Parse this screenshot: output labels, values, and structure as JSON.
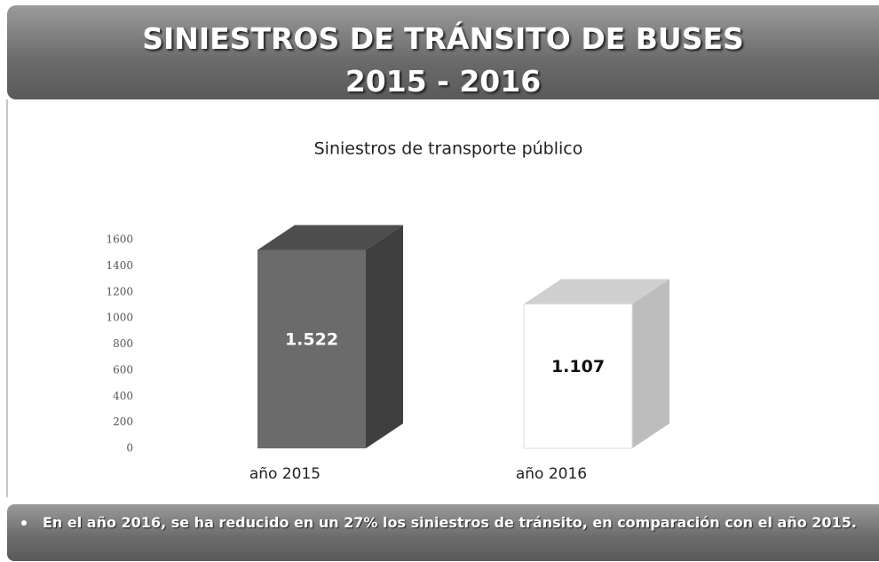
{
  "header": {
    "title": "SINIESTROS DE TRÁNSITO DE BUSES",
    "subtitle": "2015 - 2016"
  },
  "chart_data": {
    "type": "bar",
    "title": "Siniestros de transporte público",
    "categories": [
      "año 2015",
      "año 2016"
    ],
    "values": [
      1522,
      1107
    ],
    "value_labels": [
      "1.522",
      "1.107"
    ],
    "colors": [
      "#6b6b6b",
      "#ffffff"
    ],
    "ylim": [
      0,
      1600
    ],
    "yticks": [
      0,
      200,
      400,
      600,
      800,
      1000,
      1200,
      1400,
      1600
    ],
    "grid": false
  },
  "footer": {
    "note": "En el año 2016, se ha reducido en un 27% los siniestros de tránsito, en comparación con el año 2015."
  }
}
